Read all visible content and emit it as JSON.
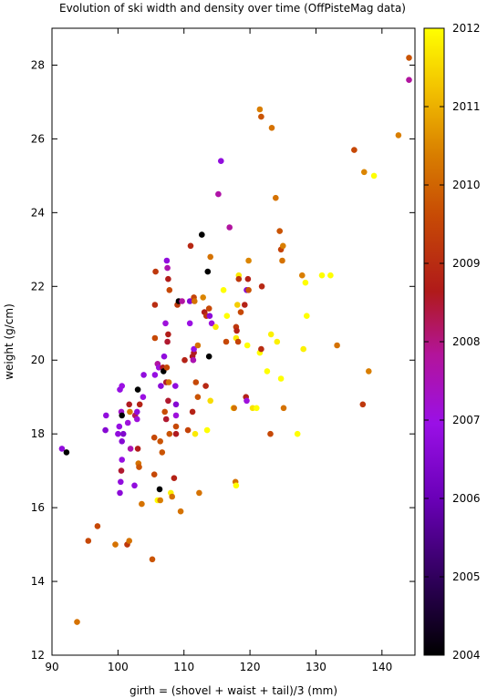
{
  "chart_data": {
    "type": "scatter",
    "title": "Evolution of ski width and density over time (OffPisteMag data)",
    "xlabel": "girth = (shovel + waist + tail)/3 (mm)",
    "ylabel": "weight (g/cm)",
    "xlim": [
      90,
      145
    ],
    "ylim": [
      12,
      29
    ],
    "xticks": [
      90,
      100,
      110,
      120,
      130,
      140
    ],
    "yticks": [
      12,
      14,
      16,
      18,
      20,
      22,
      24,
      26,
      28
    ],
    "colorbar": {
      "label_range": [
        2004,
        2012
      ],
      "ticks": [
        2004,
        2005,
        2006,
        2007,
        2008,
        2009,
        2010,
        2011,
        2012
      ],
      "palette": [
        "#000000",
        "#2a0052",
        "#6a00b8",
        "#9a10e6",
        "#b3149a",
        "#b01a1a",
        "#c74a05",
        "#d97f00",
        "#f2c000",
        "#ffff00"
      ]
    },
    "grid": false,
    "legend": "none",
    "points": [
      [
        91.5,
        17.6,
        2006.5
      ],
      [
        92.2,
        17.5,
        2004
      ],
      [
        93.8,
        12.9,
        2010
      ],
      [
        95.5,
        15.1,
        2009.3
      ],
      [
        96.9,
        15.5,
        2009.3
      ],
      [
        98.2,
        18.5,
        2006.5
      ],
      [
        98.1,
        18.1,
        2006.3
      ],
      [
        99.6,
        15.0,
        2010
      ],
      [
        100.0,
        18.0,
        2006.5
      ],
      [
        100.2,
        18.2,
        2006.6
      ],
      [
        100.4,
        16.7,
        2006.5
      ],
      [
        100.3,
        16.4,
        2006.4
      ],
      [
        100.5,
        17.0,
        2008.3
      ],
      [
        100.6,
        17.3,
        2006.6
      ],
      [
        100.3,
        19.2,
        2006.6
      ],
      [
        100.5,
        18.6,
        2007
      ],
      [
        100.6,
        19.3,
        2006.7
      ],
      [
        100.6,
        18.5,
        2004
      ],
      [
        100.6,
        17.8,
        2006.3
      ],
      [
        100.8,
        18.0,
        2006.2
      ],
      [
        101.4,
        15.0,
        2009
      ],
      [
        101.7,
        15.1,
        2010
      ],
      [
        101.8,
        18.6,
        2010.2
      ],
      [
        101.7,
        18.8,
        2008.4
      ],
      [
        101.5,
        18.3,
        2006.8
      ],
      [
        101.9,
        17.6,
        2007.3
      ],
      [
        102.5,
        16.6,
        2006.5
      ],
      [
        102.6,
        18.5,
        2008
      ],
      [
        102.9,
        18.6,
        2006.5
      ],
      [
        102.9,
        18.4,
        2006.8
      ],
      [
        103.1,
        17.2,
        2010
      ],
      [
        103.0,
        17.6,
        2008.5
      ],
      [
        103.0,
        19.2,
        2004
      ],
      [
        103.2,
        17.1,
        2009.5
      ],
      [
        103.3,
        18.8,
        2008.6
      ],
      [
        103.6,
        16.1,
        2010
      ],
      [
        103.8,
        19.0,
        2006.7
      ],
      [
        103.9,
        19.6,
        2006.5
      ],
      [
        105.2,
        14.6,
        2009.5
      ],
      [
        105.5,
        17.9,
        2009.3
      ],
      [
        105.5,
        16.9,
        2009.3
      ],
      [
        105.6,
        20.6,
        2009.3
      ],
      [
        105.6,
        21.5,
        2008.8
      ],
      [
        105.7,
        22.4,
        2009
      ],
      [
        105.6,
        19.6,
        2006.6
      ],
      [
        106.0,
        19.9,
        2007.5
      ],
      [
        106.2,
        19.8,
        2006.8
      ],
      [
        106.0,
        16.2,
        2012
      ],
      [
        106.4,
        16.2,
        2010.2
      ],
      [
        106.3,
        16.5,
        2004
      ],
      [
        106.4,
        17.8,
        2009.5
      ],
      [
        106.7,
        17.5,
        2009.5
      ],
      [
        106.5,
        19.3,
        2006.4
      ],
      [
        106.8,
        19.8,
        2008.4
      ],
      [
        106.9,
        19.7,
        2004
      ],
      [
        107.0,
        20.1,
        2006.5
      ],
      [
        107.2,
        21.0,
        2006.8
      ],
      [
        107.1,
        18.6,
        2009.4
      ],
      [
        107.3,
        18.4,
        2008.3
      ],
      [
        107.3,
        19.4,
        2008.3
      ],
      [
        107.5,
        20.5,
        2008.3
      ],
      [
        107.6,
        20.7,
        2008.5
      ],
      [
        107.4,
        22.7,
        2006.5
      ],
      [
        107.5,
        22.5,
        2007.3
      ],
      [
        107.6,
        22.2,
        2008.5
      ],
      [
        107.4,
        19.8,
        2009.3
      ],
      [
        107.6,
        18.9,
        2008.3
      ],
      [
        107.8,
        18.0,
        2009.5
      ],
      [
        107.7,
        19.4,
        2010
      ],
      [
        107.8,
        21.9,
        2009.3
      ],
      [
        108.0,
        16.4,
        2011.8
      ],
      [
        108.2,
        16.3,
        2010
      ],
      [
        108.5,
        16.8,
        2008.6
      ],
      [
        108.8,
        18.2,
        2009.3
      ],
      [
        108.8,
        18.0,
        2008.4
      ],
      [
        108.8,
        18.5,
        2006.8
      ],
      [
        108.8,
        18.8,
        2006.3
      ],
      [
        108.7,
        19.3,
        2006.5
      ],
      [
        109.0,
        21.5,
        2009
      ],
      [
        109.2,
        21.6,
        2004
      ],
      [
        109.5,
        15.9,
        2010
      ],
      [
        109.7,
        21.6,
        2007.5
      ],
      [
        110.1,
        20.0,
        2008.6
      ],
      [
        110.6,
        18.1,
        2009.2
      ],
      [
        110.9,
        21.0,
        2006.7
      ],
      [
        110.9,
        21.6,
        2006.3
      ],
      [
        111.0,
        23.1,
        2008.7
      ],
      [
        111.3,
        18.6,
        2008.6
      ],
      [
        111.3,
        20.1,
        2008.4
      ],
      [
        111.4,
        20.0,
        2007.3
      ],
      [
        111.5,
        20.2,
        2008.4
      ],
      [
        111.5,
        20.3,
        2006.6
      ],
      [
        111.5,
        21.7,
        2009.2
      ],
      [
        111.6,
        21.6,
        2010
      ],
      [
        111.7,
        18.0,
        2011.7
      ],
      [
        111.8,
        19.4,
        2009.3
      ],
      [
        112.1,
        20.4,
        2010
      ],
      [
        112.3,
        16.4,
        2010
      ],
      [
        112.1,
        19.0,
        2009.5
      ],
      [
        112.7,
        23.4,
        2004
      ],
      [
        112.9,
        21.7,
        2010.3
      ],
      [
        113.1,
        21.3,
        2008.5
      ],
      [
        113.4,
        21.2,
        2009
      ],
      [
        113.3,
        19.3,
        2008.7
      ],
      [
        113.5,
        18.1,
        2012
      ],
      [
        113.6,
        22.4,
        2004
      ],
      [
        113.8,
        20.1,
        2004
      ],
      [
        113.8,
        21.4,
        2009.3
      ],
      [
        113.9,
        21.2,
        2006.4
      ],
      [
        114.0,
        22.8,
        2010
      ],
      [
        114.0,
        18.9,
        2011.5
      ],
      [
        114.2,
        21.0,
        2006.8
      ],
      [
        114.8,
        20.9,
        2011.7
      ],
      [
        115.2,
        24.5,
        2007.4
      ],
      [
        115.6,
        25.4,
        2006.5
      ],
      [
        116.0,
        21.9,
        2012
      ],
      [
        116.4,
        20.5,
        2009.3
      ],
      [
        116.5,
        21.2,
        2012
      ],
      [
        116.9,
        23.6,
        2007.5
      ],
      [
        117.5,
        18.7,
        2011.7
      ],
      [
        117.6,
        18.7,
        2010
      ],
      [
        117.9,
        20.6,
        2011.7
      ],
      [
        117.8,
        16.7,
        2010
      ],
      [
        117.9,
        16.6,
        2012
      ],
      [
        117.9,
        20.9,
        2009
      ],
      [
        118.0,
        20.8,
        2008.6
      ],
      [
        118.2,
        20.5,
        2009.2
      ],
      [
        118.1,
        21.5,
        2011.3
      ],
      [
        118.3,
        22.3,
        2011.7
      ],
      [
        118.3,
        22.2,
        2009
      ],
      [
        118.6,
        21.3,
        2009.3
      ],
      [
        119.2,
        21.5,
        2008.6
      ],
      [
        119.4,
        19.0,
        2008.6
      ],
      [
        119.5,
        18.9,
        2006.8
      ],
      [
        119.5,
        21.9,
        2006.3
      ],
      [
        119.6,
        20.4,
        2012
      ],
      [
        119.7,
        22.2,
        2008.6
      ],
      [
        119.8,
        22.7,
        2010.3
      ],
      [
        119.8,
        21.9,
        2009.5
      ],
      [
        120.4,
        18.7,
        2011.6
      ],
      [
        121.0,
        18.7,
        2012
      ],
      [
        121.5,
        20.2,
        2012
      ],
      [
        121.7,
        20.3,
        2008.8
      ],
      [
        121.8,
        22.0,
        2008.7
      ],
      [
        121.5,
        26.8,
        2010.2
      ],
      [
        121.7,
        26.6,
        2009.5
      ],
      [
        122.6,
        19.7,
        2012
      ],
      [
        123.1,
        18.0,
        2009.3
      ],
      [
        123.3,
        26.3,
        2010
      ],
      [
        123.2,
        20.7,
        2011.8
      ],
      [
        123.9,
        24.4,
        2010
      ],
      [
        124.1,
        20.5,
        2011.8
      ],
      [
        124.5,
        23.5,
        2009.5
      ],
      [
        124.7,
        19.5,
        2012
      ],
      [
        124.7,
        23.0,
        2009.2
      ],
      [
        124.9,
        22.7,
        2010
      ],
      [
        125.0,
        23.1,
        2010.2
      ],
      [
        125.1,
        18.7,
        2010
      ],
      [
        127.2,
        18.0,
        2012
      ],
      [
        127.9,
        22.3,
        2010.2
      ],
      [
        128.1,
        20.3,
        2011.8
      ],
      [
        128.4,
        22.1,
        2012
      ],
      [
        128.6,
        21.2,
        2012
      ],
      [
        130.9,
        22.3,
        2012
      ],
      [
        132.2,
        22.3,
        2012
      ],
      [
        133.2,
        20.4,
        2010
      ],
      [
        135.8,
        25.7,
        2009.3
      ],
      [
        137.1,
        18.8,
        2009
      ],
      [
        137.3,
        25.1,
        2010.3
      ],
      [
        138.0,
        19.7,
        2010.2
      ],
      [
        138.8,
        25.0,
        2012
      ],
      [
        142.5,
        26.1,
        2010.2
      ],
      [
        144.1,
        28.2,
        2009.5
      ],
      [
        144.1,
        27.6,
        2007.5
      ]
    ]
  }
}
